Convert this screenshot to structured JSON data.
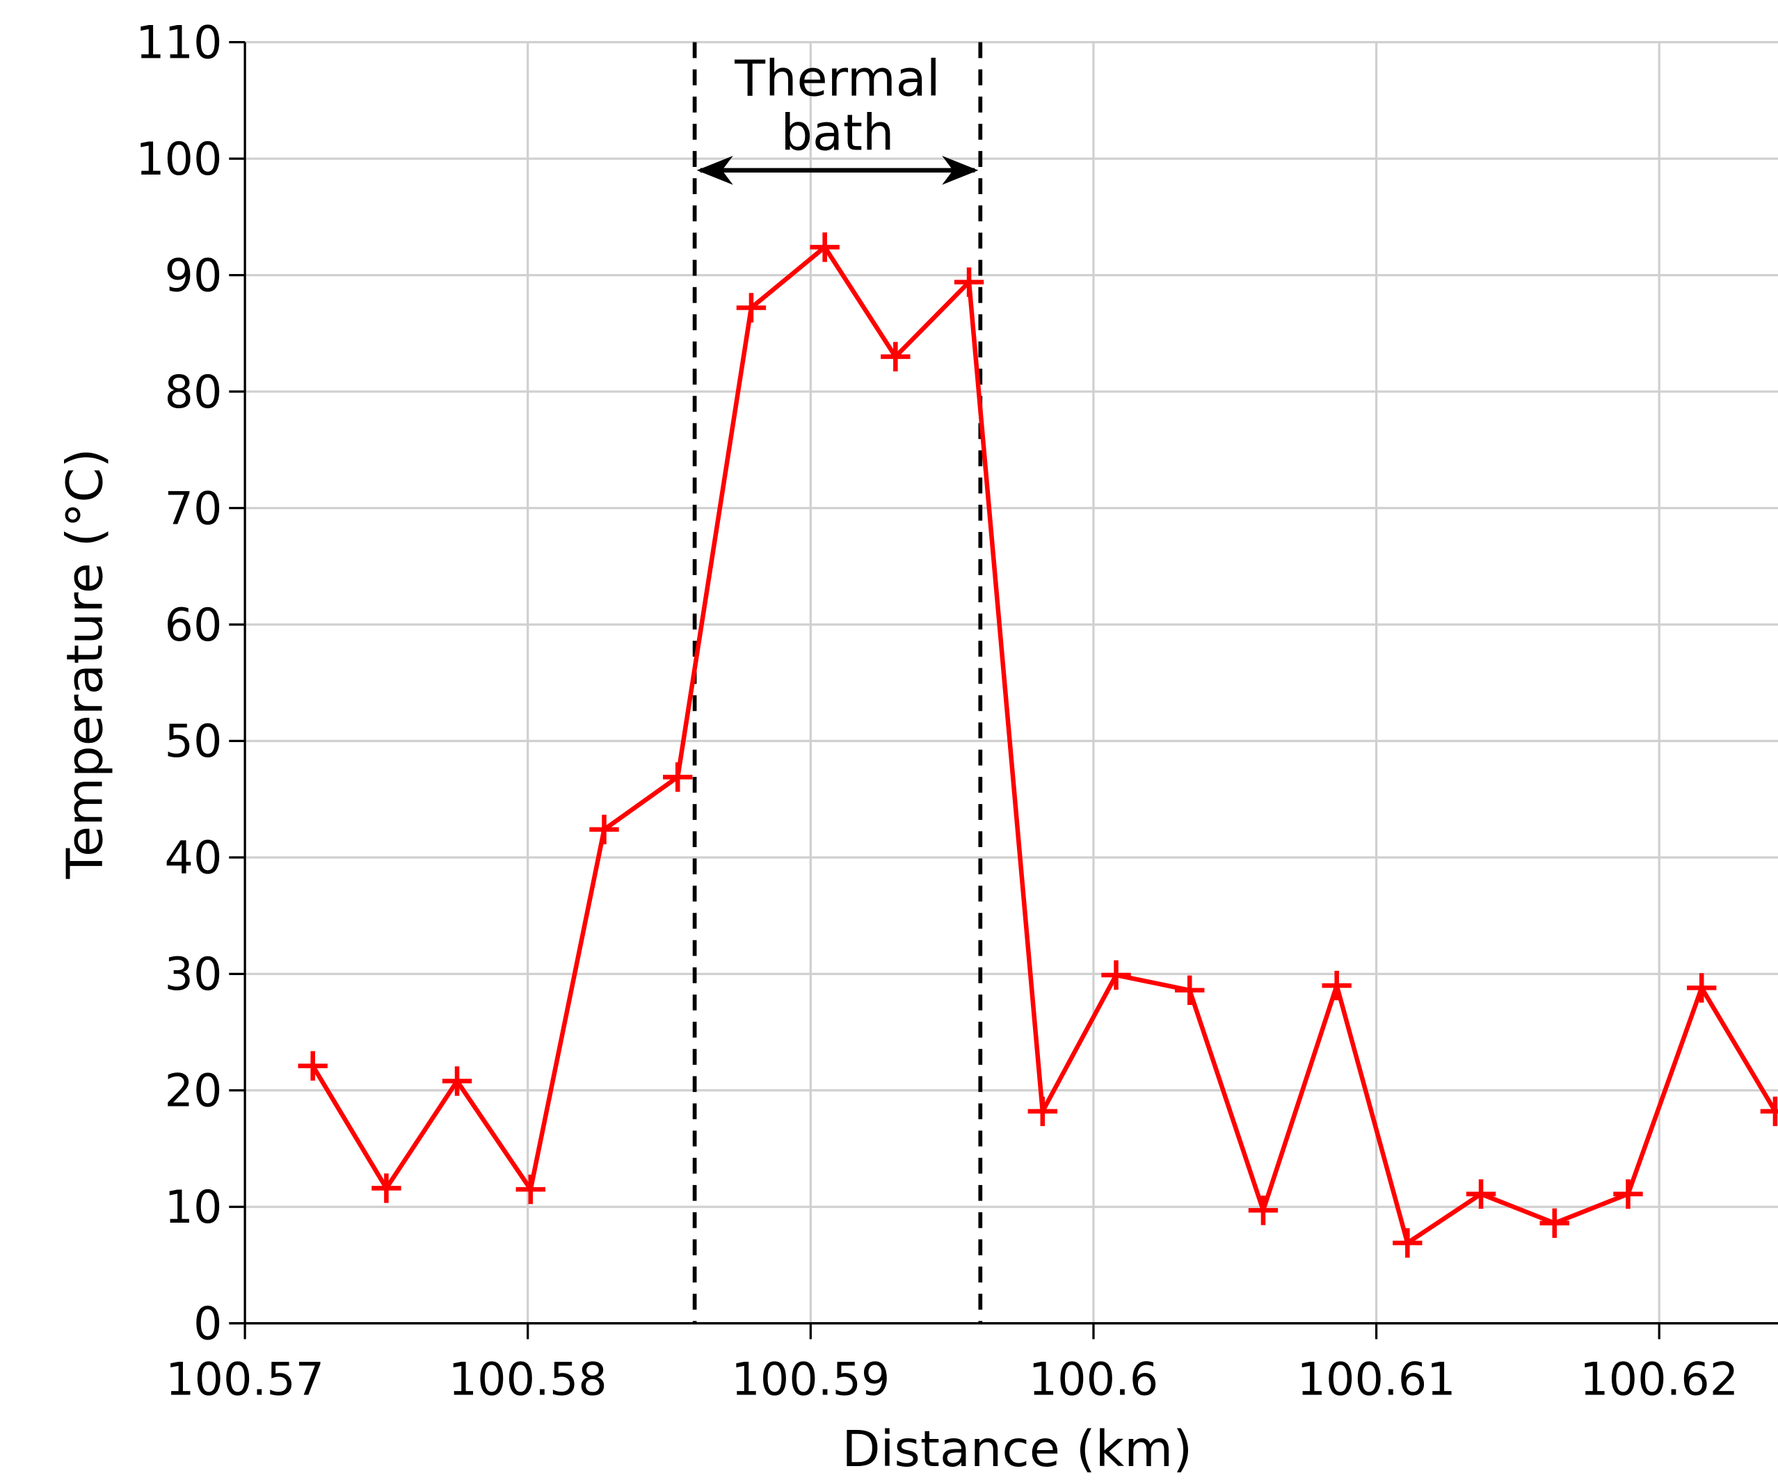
{
  "chart_data": {
    "type": "line",
    "x_label": "Distance (km)",
    "y_label": "Temperature (°C)",
    "annotation": [
      "Thermal",
      "bath"
    ],
    "vlines": [
      100.5859,
      100.596
    ],
    "x": [
      100.5724,
      100.575,
      100.5775,
      100.5801,
      100.5827,
      100.5853,
      100.5879,
      100.5905,
      100.593,
      100.5956,
      100.5982,
      100.6008,
      100.6034,
      100.606,
      100.6086,
      100.6111,
      100.6137,
      100.6163,
      100.6189,
      100.6215,
      100.6241
    ],
    "series": [
      {
        "name": "Temperature",
        "color": "#ff0000",
        "values": [
          22.1,
          11.6,
          20.8,
          11.5,
          42.4,
          46.9,
          87.2,
          92.4,
          83.0,
          89.4,
          18.2,
          29.9,
          28.6,
          9.7,
          29.0,
          6.9,
          11.1,
          8.6,
          11.1,
          28.8,
          18.2
        ]
      }
    ],
    "xlim": [
      100.57,
      100.6242
    ],
    "ylim": [
      0,
      110
    ],
    "xticks": [
      100.57,
      100.58,
      100.59,
      100.6,
      100.61,
      100.62
    ],
    "yticks": [
      0,
      10,
      20,
      30,
      40,
      50,
      60,
      70,
      80,
      90,
      100,
      110
    ],
    "grid": true
  }
}
